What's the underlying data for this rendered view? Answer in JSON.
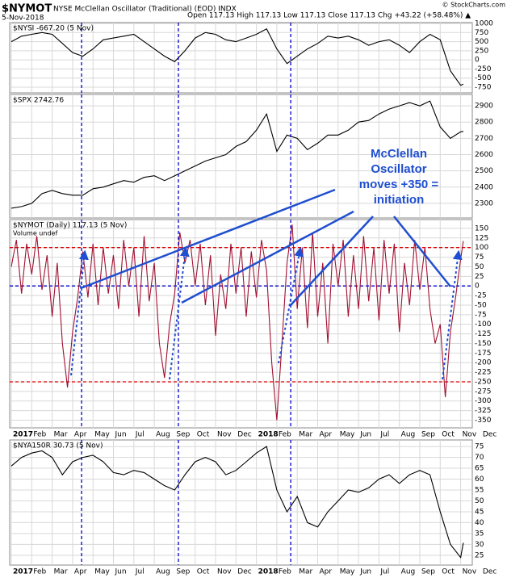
{
  "header": {
    "symbol": "$NYMOT",
    "description": "NYSE McClellan Oscillator (Traditional) (EOD) INDX",
    "date": "5-Nov-2018",
    "quote": "Open 117.13 High 117.13 Low 117.13 Close 117.13 Chg +43.22 (+58.48%) ▲",
    "source": "© StockCharts.com"
  },
  "annotation": [
    "McClellan",
    "Oscillator",
    "moves +350 =",
    "initiation"
  ],
  "chart_data": [
    {
      "type": "line",
      "title": "$NYSI -667.20 (5 Nov)",
      "color": "#000000",
      "x": [
        0,
        0.5,
        1,
        1.5,
        2,
        2.5,
        3,
        3.5,
        4,
        4.5,
        5,
        5.5,
        6,
        6.5,
        7,
        7.5,
        8,
        8.5,
        9,
        9.5,
        10,
        10.5,
        11,
        11.5,
        12,
        12.5,
        13,
        13.5,
        14,
        14.5,
        15,
        15.5,
        16,
        16.5,
        17,
        17.5,
        18,
        18.5,
        19,
        19.5,
        20,
        20.5,
        21,
        21.5,
        22,
        22.13
      ],
      "values": [
        500,
        650,
        700,
        750,
        700,
        450,
        200,
        100,
        300,
        550,
        600,
        650,
        700,
        500,
        300,
        100,
        -50,
        250,
        600,
        750,
        700,
        550,
        500,
        600,
        700,
        850,
        300,
        -100,
        100,
        300,
        450,
        650,
        600,
        650,
        550,
        400,
        500,
        550,
        400,
        200,
        500,
        700,
        550,
        -300,
        -700,
        -667.2
      ],
      "xlim": [
        -0.08,
        22.57
      ],
      "ylim": [
        -905,
        1022
      ],
      "yticks": [
        1000,
        750,
        500,
        250,
        0,
        -250,
        -500,
        -750
      ],
      "xticks": [
        {
          "value": 0,
          "label": "2017"
        },
        {
          "value": 1,
          "label": "Feb"
        },
        {
          "value": 2,
          "label": "Mar"
        },
        {
          "value": 3,
          "label": "Apr"
        },
        {
          "value": 4,
          "label": "May"
        },
        {
          "value": 5,
          "label": "Jun"
        },
        {
          "value": 6,
          "label": "Jul"
        },
        {
          "value": 7,
          "label": "Aug"
        },
        {
          "value": 8,
          "label": "Sep"
        },
        {
          "value": 9,
          "label": "Oct"
        },
        {
          "value": 10,
          "label": "Nov"
        },
        {
          "value": 11,
          "label": "Dec"
        },
        {
          "value": 12,
          "label": "2018"
        },
        {
          "value": 13,
          "label": "Feb"
        },
        {
          "value": 14,
          "label": "Mar"
        },
        {
          "value": 15,
          "label": "Apr"
        },
        {
          "value": 16,
          "label": "May"
        },
        {
          "value": 17,
          "label": "Jun"
        },
        {
          "value": 18,
          "label": "Jul"
        },
        {
          "value": 19,
          "label": "Aug"
        },
        {
          "value": 20,
          "label": "Sep"
        },
        {
          "value": 21,
          "label": "Oct"
        },
        {
          "value": 22,
          "label": "Nov"
        }
      ],
      "show_xtick_labels": false,
      "vlines": [
        3.44,
        8.18,
        13.68
      ],
      "grid": true
    },
    {
      "type": "line",
      "title": "$SPX 2742.76",
      "color": "#000000",
      "x": [
        0,
        0.5,
        1,
        1.5,
        2,
        2.5,
        3,
        3.5,
        4,
        4.5,
        5,
        5.5,
        6,
        6.5,
        7,
        7.5,
        8,
        8.5,
        9,
        9.5,
        10,
        10.5,
        11,
        11.5,
        12,
        12.5,
        13,
        13.5,
        14,
        14.5,
        15,
        15.5,
        16,
        16.5,
        17,
        17.5,
        18,
        18.5,
        19,
        19.5,
        20,
        20.5,
        21,
        21.5,
        22,
        22.13
      ],
      "values": [
        2270,
        2280,
        2300,
        2360,
        2380,
        2360,
        2350,
        2350,
        2390,
        2400,
        2420,
        2440,
        2430,
        2460,
        2470,
        2440,
        2470,
        2500,
        2530,
        2560,
        2580,
        2600,
        2650,
        2680,
        2750,
        2850,
        2620,
        2720,
        2700,
        2630,
        2670,
        2720,
        2720,
        2750,
        2800,
        2810,
        2850,
        2880,
        2900,
        2920,
        2900,
        2930,
        2770,
        2700,
        2740,
        2742.76
      ],
      "xlim": [
        -0.08,
        22.57
      ],
      "ylim": [
        2210,
        2970
      ],
      "yticks": [
        2900,
        2800,
        2700,
        2600,
        2500,
        2400,
        2300
      ],
      "xticks": [
        {
          "value": 0,
          "label": "2017"
        },
        {
          "value": 1,
          "label": "Feb"
        },
        {
          "value": 2,
          "label": "Mar"
        },
        {
          "value": 3,
          "label": "Apr"
        },
        {
          "value": 4,
          "label": "May"
        },
        {
          "value": 5,
          "label": "Jun"
        },
        {
          "value": 6,
          "label": "Jul"
        },
        {
          "value": 7,
          "label": "Aug"
        },
        {
          "value": 8,
          "label": "Sep"
        },
        {
          "value": 9,
          "label": "Oct"
        },
        {
          "value": 10,
          "label": "Nov"
        },
        {
          "value": 11,
          "label": "Dec"
        },
        {
          "value": 12,
          "label": "2018"
        },
        {
          "value": 13,
          "label": "Feb"
        },
        {
          "value": 14,
          "label": "Mar"
        },
        {
          "value": 15,
          "label": "Apr"
        },
        {
          "value": 16,
          "label": "May"
        },
        {
          "value": 17,
          "label": "Jun"
        },
        {
          "value": 18,
          "label": "Jul"
        },
        {
          "value": 19,
          "label": "Aug"
        },
        {
          "value": 20,
          "label": "Sep"
        },
        {
          "value": 21,
          "label": "Oct"
        },
        {
          "value": 22,
          "label": "Nov"
        }
      ],
      "show_xtick_labels": false,
      "vlines": [
        3.44,
        8.18,
        13.68
      ],
      "grid": true
    },
    {
      "type": "line",
      "title": "$NYMOT (Daily) 117.13 (5 Nov)",
      "subtitle": "Volume undef",
      "color": "#a01030",
      "x": [
        0,
        0.25,
        0.5,
        0.75,
        1,
        1.25,
        1.5,
        1.75,
        2,
        2.25,
        2.5,
        2.75,
        3,
        3.25,
        3.5,
        3.75,
        4,
        4.25,
        4.5,
        4.75,
        5,
        5.25,
        5.5,
        5.75,
        6,
        6.25,
        6.5,
        6.75,
        7,
        7.25,
        7.5,
        7.75,
        8,
        8.25,
        8.5,
        8.75,
        9,
        9.25,
        9.5,
        9.75,
        10,
        10.25,
        10.5,
        10.75,
        11,
        11.25,
        11.5,
        11.75,
        12,
        12.25,
        12.5,
        12.75,
        13,
        13.25,
        13.5,
        13.75,
        14,
        14.25,
        14.5,
        14.75,
        15,
        15.25,
        15.5,
        15.75,
        16,
        16.25,
        16.5,
        16.75,
        17,
        17.25,
        17.5,
        17.75,
        18,
        18.25,
        18.5,
        18.75,
        19,
        19.25,
        19.5,
        19.75,
        20,
        20.25,
        20.5,
        20.75,
        21,
        21.25,
        21.5,
        21.75,
        22,
        22.13
      ],
      "values": [
        50,
        120,
        -20,
        110,
        30,
        130,
        -10,
        80,
        -80,
        60,
        -150,
        -265,
        -120,
        -30,
        90,
        -30,
        110,
        -50,
        100,
        -20,
        80,
        -60,
        120,
        0,
        100,
        -80,
        130,
        -40,
        60,
        -150,
        -240,
        -100,
        -20,
        140,
        60,
        120,
        0,
        110,
        -50,
        80,
        -130,
        30,
        -60,
        110,
        -20,
        100,
        -80,
        90,
        -30,
        120,
        40,
        -200,
        -350,
        -150,
        60,
        160,
        -60,
        100,
        -110,
        140,
        -80,
        60,
        -150,
        110,
        0,
        120,
        -80,
        80,
        -60,
        130,
        -40,
        100,
        -90,
        120,
        -20,
        110,
        -120,
        60,
        -50,
        120,
        -10,
        100,
        -60,
        -150,
        -100,
        -290,
        -120,
        -30,
        70,
        117.13
      ],
      "xlim": [
        -0.08,
        22.57
      ],
      "ylim": [
        -370,
        173
      ],
      "yticks": [
        150,
        125,
        100,
        75,
        50,
        25,
        0,
        -25,
        -50,
        -75,
        -100,
        -125,
        -150,
        -175,
        -200,
        -225,
        -250,
        -275,
        -300,
        -325,
        -350
      ],
      "xticks": [
        {
          "value": 0,
          "label": "2017"
        },
        {
          "value": 1,
          "label": "Feb"
        },
        {
          "value": 2,
          "label": "Mar"
        },
        {
          "value": 3,
          "label": "Apr"
        },
        {
          "value": 4,
          "label": "May"
        },
        {
          "value": 5,
          "label": "Jun"
        },
        {
          "value": 6,
          "label": "Jul"
        },
        {
          "value": 7,
          "label": "Aug"
        },
        {
          "value": 8,
          "label": "Sep"
        },
        {
          "value": 9,
          "label": "Oct"
        },
        {
          "value": 10,
          "label": "Nov"
        },
        {
          "value": 11,
          "label": "Dec"
        },
        {
          "value": 12,
          "label": "2018"
        },
        {
          "value": 13,
          "label": "Feb"
        },
        {
          "value": 14,
          "label": "Mar"
        },
        {
          "value": 15,
          "label": "Apr"
        },
        {
          "value": 16,
          "label": "May"
        },
        {
          "value": 17,
          "label": "Jun"
        },
        {
          "value": 18,
          "label": "Jul"
        },
        {
          "value": 19,
          "label": "Aug"
        },
        {
          "value": 20,
          "label": "Sep"
        },
        {
          "value": 21,
          "label": "Oct"
        },
        {
          "value": 22,
          "label": "Nov"
        },
        {
          "value": 23,
          "label": "Dec"
        }
      ],
      "show_xtick_labels": true,
      "vlines": [
        3.44,
        8.18,
        13.68
      ],
      "grid": true,
      "hlines": [
        {
          "value": 100,
          "color": "#e00000"
        },
        {
          "value": 0,
          "color": "#0000cc"
        },
        {
          "value": -250,
          "color": "#e00000"
        }
      ]
    },
    {
      "type": "line",
      "title": "$NYA150R 30.73 (5 Nov)",
      "color": "#000000",
      "x": [
        0,
        0.5,
        1,
        1.5,
        2,
        2.5,
        3,
        3.5,
        4,
        4.5,
        5,
        5.5,
        6,
        6.5,
        7,
        7.5,
        8,
        8.5,
        9,
        9.5,
        10,
        10.5,
        11,
        11.5,
        12,
        12.5,
        13,
        13.5,
        14,
        14.5,
        15,
        15.5,
        16,
        16.5,
        17,
        17.5,
        18,
        18.5,
        19,
        19.5,
        20,
        20.5,
        21,
        21.5,
        22,
        22.13
      ],
      "values": [
        66,
        70,
        72,
        73,
        70,
        62,
        68,
        70,
        71,
        68,
        63,
        62,
        64,
        63,
        60,
        57,
        55,
        62,
        68,
        70,
        68,
        62,
        64,
        68,
        72,
        75,
        55,
        45,
        52,
        40,
        38,
        45,
        50,
        55,
        54,
        56,
        60,
        62,
        58,
        62,
        64,
        62,
        45,
        30,
        24,
        30.73
      ],
      "xlim": [
        -0.08,
        22.57
      ],
      "ylim": [
        20.5,
        78
      ],
      "yticks": [
        75,
        70,
        65,
        60,
        55,
        50,
        45,
        40,
        35,
        30,
        25
      ],
      "xticks": [
        {
          "value": 0,
          "label": "2017"
        },
        {
          "value": 1,
          "label": "Feb"
        },
        {
          "value": 2,
          "label": "Mar"
        },
        {
          "value": 3,
          "label": "Apr"
        },
        {
          "value": 4,
          "label": "May"
        },
        {
          "value": 5,
          "label": "Jun"
        },
        {
          "value": 6,
          "label": "Jul"
        },
        {
          "value": 7,
          "label": "Aug"
        },
        {
          "value": 8,
          "label": "Sep"
        },
        {
          "value": 9,
          "label": "Oct"
        },
        {
          "value": 10,
          "label": "Nov"
        },
        {
          "value": 11,
          "label": "Dec"
        },
        {
          "value": 12,
          "label": "2018"
        },
        {
          "value": 13,
          "label": "Feb"
        },
        {
          "value": 14,
          "label": "Mar"
        },
        {
          "value": 15,
          "label": "Apr"
        },
        {
          "value": 16,
          "label": "May"
        },
        {
          "value": 17,
          "label": "Jun"
        },
        {
          "value": 18,
          "label": "Jul"
        },
        {
          "value": 19,
          "label": "Aug"
        },
        {
          "value": 20,
          "label": "Sep"
        },
        {
          "value": 21,
          "label": "Oct"
        },
        {
          "value": 22,
          "label": "Nov"
        },
        {
          "value": 23,
          "label": "Dec"
        }
      ],
      "show_xtick_labels": true,
      "vlines": [
        3.44,
        8.18,
        13.68
      ],
      "grid": true
    }
  ]
}
